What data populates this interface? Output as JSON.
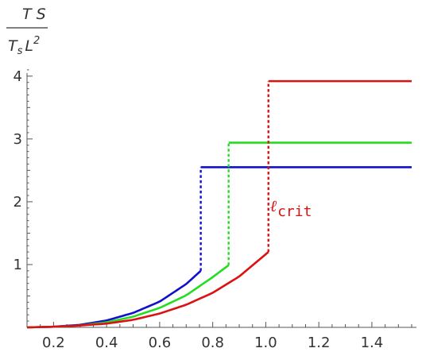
{
  "chart_data": {
    "type": "line",
    "ylabel_num": "T S",
    "ylabel_den": "T",
    "ylabel_den_sub": "s",
    "ylabel_den_L": "L",
    "ylabel_den_exp": "2",
    "xlim": [
      0.1,
      1.55
    ],
    "ylim": [
      0,
      4.2
    ],
    "x_ticks": [
      "0.2",
      "0.4",
      "0.6",
      "0.8",
      "1.0",
      "1.2",
      "1.4"
    ],
    "y_ticks": [
      "1",
      "2",
      "3",
      "4"
    ],
    "annotation": {
      "symbol": "ℓ",
      "subscript": "crit",
      "color": "#dd1111",
      "x": 1.01,
      "y": 1.85
    },
    "series": [
      {
        "color": "#1111cc",
        "x_crit": 0.755,
        "curve": {
          "x": [
            0.1,
            0.2,
            0.3,
            0.4,
            0.5,
            0.6,
            0.7,
            0.755
          ],
          "y": [
            0.0,
            0.01,
            0.04,
            0.11,
            0.23,
            0.41,
            0.69,
            0.9
          ]
        },
        "jump_to": 2.55,
        "plateau_end": 1.55
      },
      {
        "color": "#22dd22",
        "x_crit": 0.86,
        "curve": {
          "x": [
            0.1,
            0.2,
            0.3,
            0.4,
            0.5,
            0.6,
            0.7,
            0.8,
            0.86
          ],
          "y": [
            0.0,
            0.01,
            0.03,
            0.08,
            0.17,
            0.31,
            0.51,
            0.8,
            0.99
          ]
        },
        "jump_to": 2.94,
        "plateau_end": 1.55
      },
      {
        "color": "#dd1111",
        "x_crit": 1.01,
        "curve": {
          "x": [
            0.1,
            0.2,
            0.3,
            0.4,
            0.5,
            0.6,
            0.7,
            0.8,
            0.9,
            1.01
          ],
          "y": [
            0.0,
            0.01,
            0.03,
            0.06,
            0.12,
            0.22,
            0.36,
            0.55,
            0.81,
            1.2
          ]
        },
        "jump_to": 3.92,
        "plateau_end": 1.55
      }
    ]
  }
}
